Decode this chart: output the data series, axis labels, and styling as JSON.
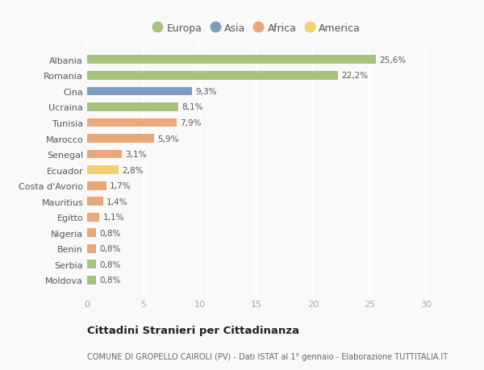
{
  "countries": [
    "Albania",
    "Romania",
    "Cina",
    "Ucraina",
    "Tunisia",
    "Marocco",
    "Senegal",
    "Ecuador",
    "Costa d'Avorio",
    "Mauritius",
    "Egitto",
    "Nigeria",
    "Benin",
    "Serbia",
    "Moldova"
  ],
  "values": [
    25.6,
    22.2,
    9.3,
    8.1,
    7.9,
    5.9,
    3.1,
    2.8,
    1.7,
    1.4,
    1.1,
    0.8,
    0.8,
    0.8,
    0.8
  ],
  "labels": [
    "25,6%",
    "22,2%",
    "9,3%",
    "8,1%",
    "7,9%",
    "5,9%",
    "3,1%",
    "2,8%",
    "1,7%",
    "1,4%",
    "1,1%",
    "0,8%",
    "0,8%",
    "0,8%",
    "0,8%"
  ],
  "continents": [
    "Europa",
    "Europa",
    "Asia",
    "Europa",
    "Africa",
    "Africa",
    "Africa",
    "America",
    "Africa",
    "Africa",
    "Africa",
    "Africa",
    "Africa",
    "Europa",
    "Europa"
  ],
  "colors": {
    "Europa": "#a8c17c",
    "Asia": "#7b9ebf",
    "Africa": "#e8a878",
    "America": "#f0d070"
  },
  "legend_order": [
    "Europa",
    "Asia",
    "Africa",
    "America"
  ],
  "xlim": [
    0,
    30
  ],
  "xticks": [
    0,
    5,
    10,
    15,
    20,
    25,
    30
  ],
  "title": "Cittadini Stranieri per Cittadinanza",
  "subtitle": "COMUNE DI GROPELLO CAIROLI (PV) - Dati ISTAT al 1° gennaio - Elaborazione TUTTITALIA.IT",
  "bg_color": "#f9f9f9",
  "grid_color": "#ffffff",
  "bar_height": 0.55
}
